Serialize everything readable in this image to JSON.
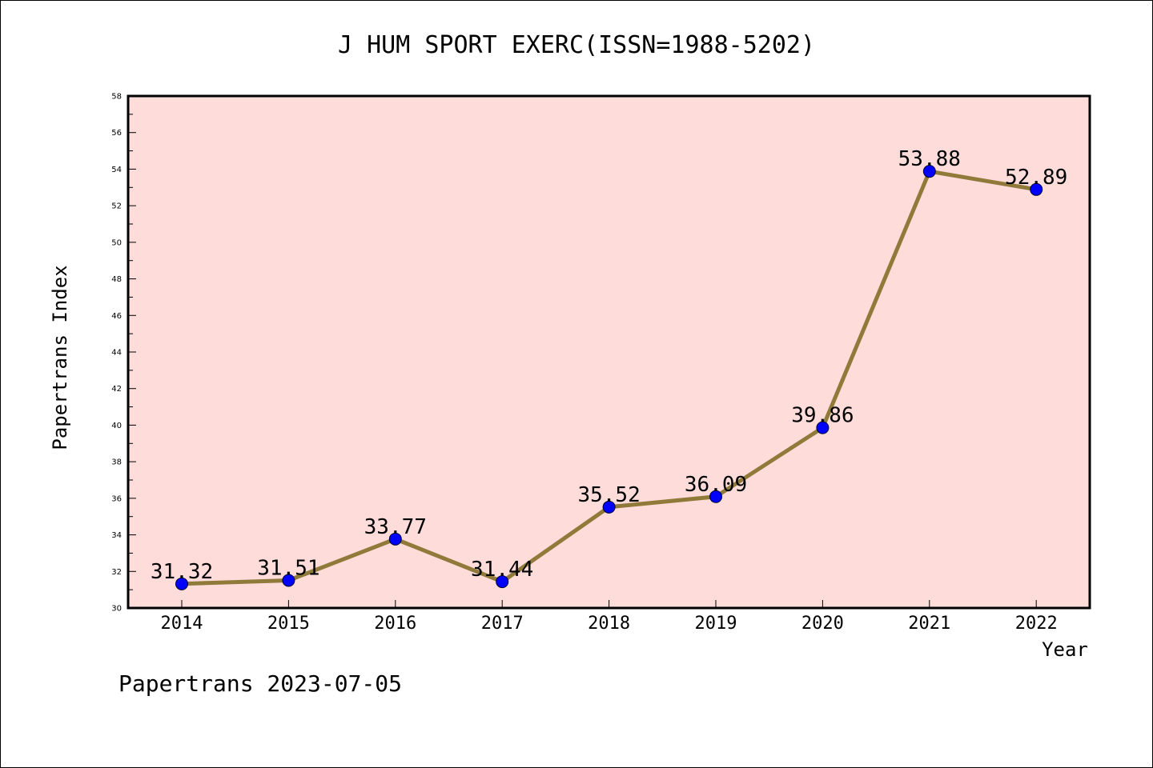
{
  "footer_text": "Papertrans 2023-07-05",
  "chart_data": {
    "type": "line",
    "title": "J HUM SPORT EXERC(ISSN=1988-5202)",
    "xlabel": "Year",
    "ylabel": "Papertrans Index",
    "x": [
      "2014",
      "2015",
      "2016",
      "2017",
      "2018",
      "2019",
      "2020",
      "2021",
      "2022"
    ],
    "values": [
      31.32,
      31.51,
      33.77,
      31.44,
      35.52,
      36.09,
      39.86,
      53.88,
      52.89
    ],
    "data_labels": [
      "31.32",
      "31.51",
      "33.77",
      "31.44",
      "35.52",
      "36.09",
      "39.86",
      "53.88",
      "52.89"
    ],
    "ylim": [
      30,
      58
    ],
    "yticks": [
      30,
      32,
      34,
      36,
      38,
      40,
      42,
      44,
      46,
      48,
      50,
      52,
      54,
      56,
      58
    ],
    "grid": false,
    "colors": {
      "plot_background": "#fddcda",
      "line": "#8f7a3a",
      "marker": "#0000ff"
    }
  }
}
